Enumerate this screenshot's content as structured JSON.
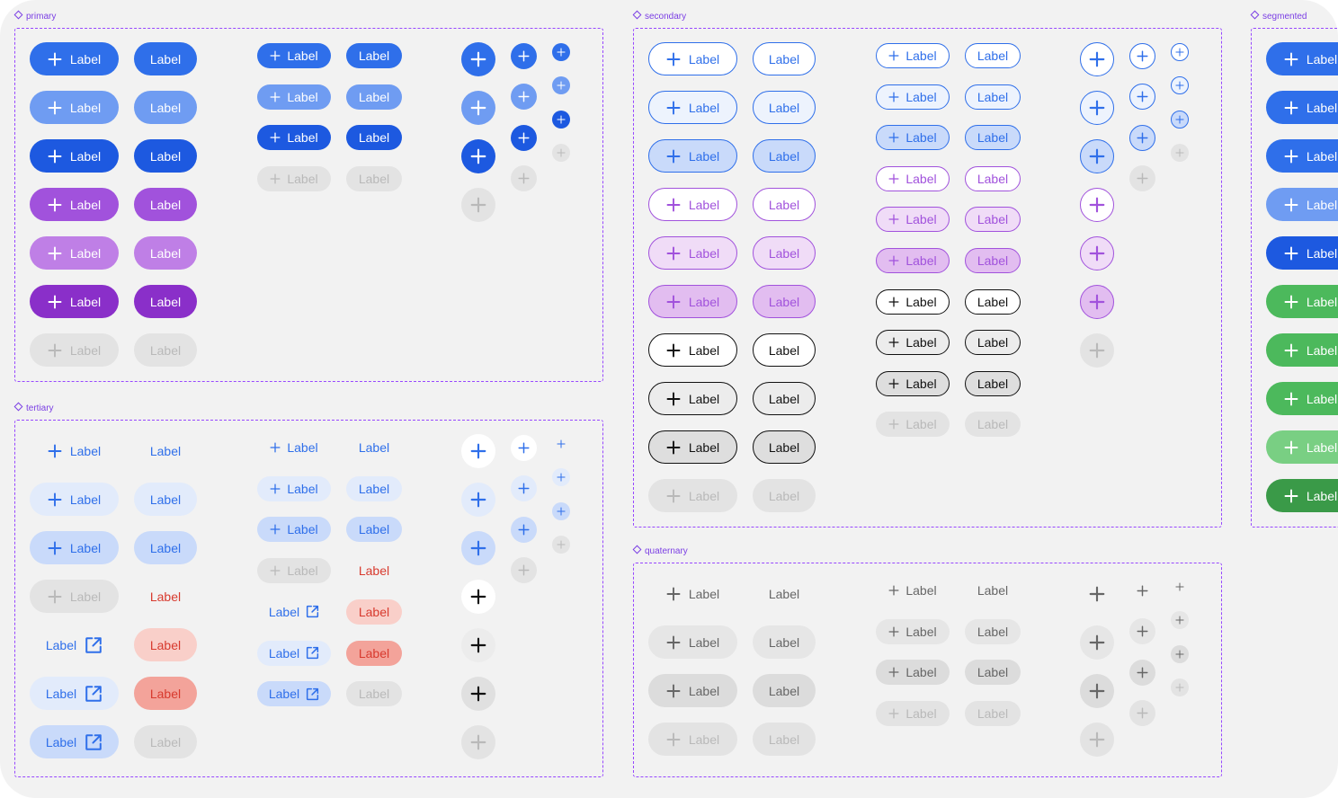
{
  "groups": [
    {
      "id": "primary",
      "title": "primary"
    },
    {
      "id": "secondary",
      "title": "secondary"
    },
    {
      "id": "segmented",
      "title": "segmented"
    },
    {
      "id": "tertiary",
      "title": "tertiary"
    },
    {
      "id": "quaternary",
      "title": "quaternary"
    }
  ],
  "button_label": "Label",
  "icons": {
    "add": "plus-icon",
    "external": "external-link-icon"
  },
  "colors": {
    "blue": "#2f6fea",
    "blue_light": "#6f9cf2",
    "blue_dark": "#1d59e0",
    "purple": "#a152dc",
    "purple_light": "#bf7fe6",
    "purple_dark": "#8a2fc9",
    "green": "#4cb95c",
    "green_light": "#79cf83",
    "green_dark": "#3a9a48",
    "disabled_bg": "#e3e3e3",
    "disabled_fg": "#b9b9b9",
    "red_text": "#d83a2e",
    "red_soft": "#f9cfc9",
    "red_strong": "#f3a39a",
    "tint_blue": "#e2ebfb",
    "tint_blue_strong": "#c9dafa",
    "tint_purple": "#f0dcf7",
    "tint_purple_strong": "#e2bdf0",
    "neutral_fg": "#666666"
  }
}
